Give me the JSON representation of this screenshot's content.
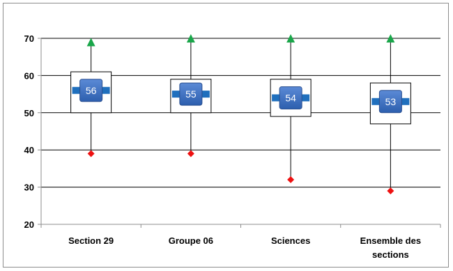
{
  "chart_data": {
    "type": "boxplot",
    "title": "",
    "xlabel": "",
    "ylabel": "",
    "ylim": [
      20,
      70
    ],
    "yticks": [
      20,
      30,
      40,
      50,
      60,
      70
    ],
    "grid": true,
    "categories": [
      [
        "Section 29"
      ],
      [
        "Groupe 06"
      ],
      [
        "Sciences"
      ],
      [
        "Ensemble des",
        "sections"
      ]
    ],
    "series": [
      {
        "values": [
          69,
          70,
          70,
          70
        ],
        "marker": "triangle",
        "color": "#1aa64a"
      },
      {
        "values": [
          61,
          59,
          59,
          58
        ]
      },
      {
        "values": [
          56,
          55,
          54,
          53
        ],
        "labels": [
          "56",
          "55",
          "54",
          "53"
        ],
        "color": "#3f72c0"
      },
      {
        "values": [
          50,
          50,
          49,
          47
        ]
      },
      {
        "values": [
          39,
          39,
          32,
          29
        ],
        "marker": "diamond",
        "color": "#ee1111"
      }
    ]
  }
}
